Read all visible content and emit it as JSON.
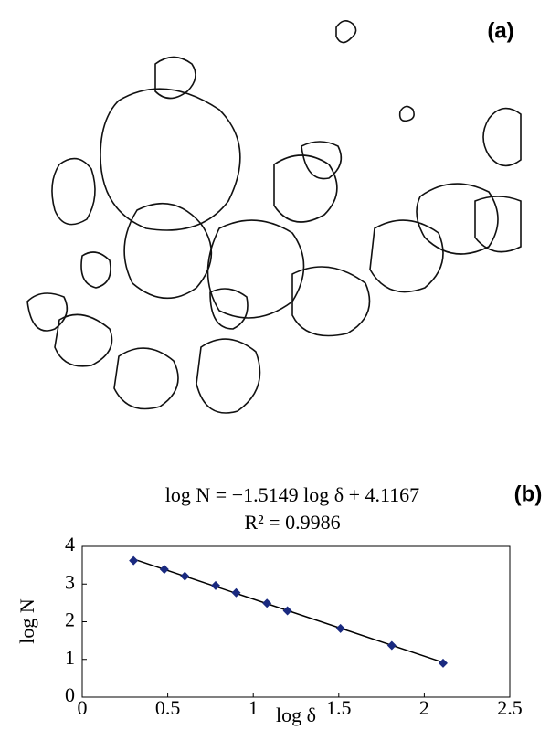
{
  "panel_a": {
    "label": "(a)"
  },
  "chart_data": {
    "type": "scatter",
    "panel_label": "(b)",
    "equation": "log N = −1.5149 log δ + 4.1167",
    "r_squared": "R² = 0.9986",
    "x_label": "log δ",
    "y_label": "log N",
    "x": [
      0.3,
      0.48,
      0.6,
      0.78,
      0.9,
      1.08,
      1.2,
      1.51,
      1.81,
      2.11
    ],
    "values": [
      3.62,
      3.39,
      3.21,
      2.96,
      2.77,
      2.49,
      2.29,
      1.82,
      1.37,
      0.9
    ],
    "color": "#1a2a80",
    "trendline": {
      "slope": -1.5149,
      "intercept": 4.1167,
      "color": "#000000"
    },
    "xlim": [
      0,
      2.5
    ],
    "xticks": [
      0,
      0.5,
      1,
      1.5,
      2,
      2.5
    ],
    "ylim": [
      0,
      4
    ],
    "yticks": [
      0,
      1,
      2,
      3,
      4
    ],
    "grid": false
  }
}
